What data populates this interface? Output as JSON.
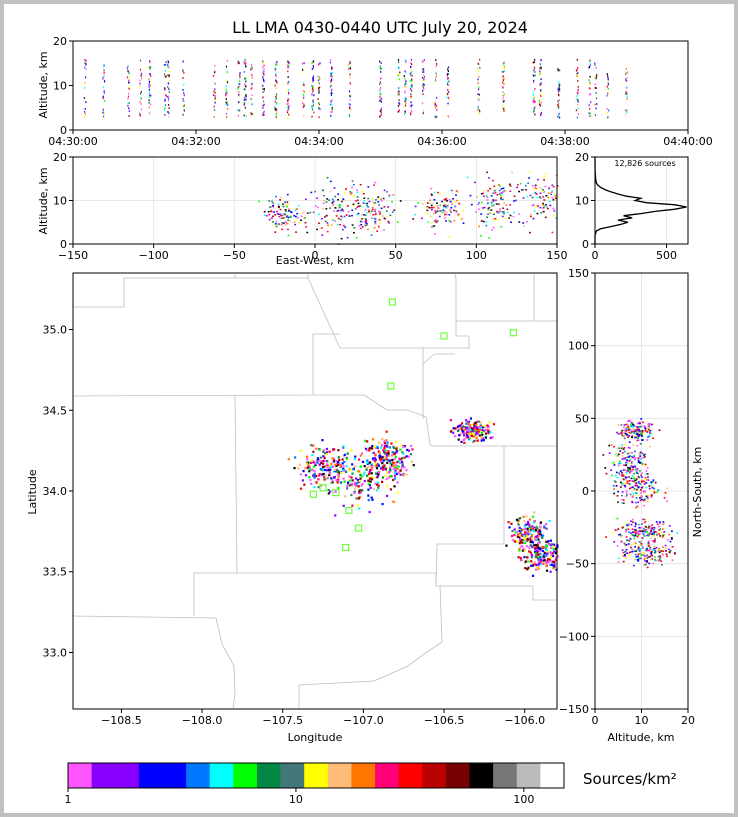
{
  "title": "LL LMA 0430-0440 UTC July 20, 2024",
  "colorbar": {
    "label": "Sources/km²",
    "tick_labels": [
      "1",
      "10",
      "100"
    ],
    "tick_values": [
      1,
      10,
      100
    ],
    "range": [
      1,
      150
    ],
    "colors": [
      "#ff55ff",
      "#8800ff",
      "#8800ff",
      "#0000ff",
      "#0000ff",
      "#0077ff",
      "#00ffff",
      "#00ff00",
      "#008844",
      "#447777",
      "#ffff00",
      "#ffbb77",
      "#ff7700",
      "#ff0077",
      "#ff0000",
      "#bb0000",
      "#770000",
      "#000000",
      "#777777",
      "#bbbbbb",
      "#ffffff"
    ]
  },
  "chart_data": [
    {
      "id": "time_height",
      "type": "scatter",
      "xlabel": "",
      "ylabel": "Altitude, km",
      "xlim": [
        "04:30:00",
        "04:40:00"
      ],
      "ylim": [
        0,
        20
      ],
      "x_tick_labels": [
        "04:30:00",
        "04:32:00",
        "04:34:00",
        "04:36:00",
        "04:38:00",
        "04:40:00"
      ],
      "y_tick_labels": [
        "0",
        "10",
        "20"
      ],
      "flash_times_min": [
        0.2,
        0.5,
        0.9,
        1.1,
        1.25,
        1.5,
        1.55,
        1.8,
        2.3,
        2.5,
        2.7,
        2.8,
        2.9,
        3.1,
        3.3,
        3.5,
        3.75,
        3.9,
        4.0,
        4.2,
        4.5,
        5.0,
        5.3,
        5.4,
        5.5,
        5.7,
        5.9,
        6.1,
        6.6,
        7.0,
        7.5,
        7.6,
        7.9,
        8.2,
        8.4,
        8.5,
        8.7,
        9.0
      ],
      "typical_altitude_km": [
        2,
        18
      ]
    },
    {
      "id": "east_west_height",
      "type": "scatter",
      "xlabel": "East-West, km",
      "ylabel": "Altitude, km",
      "xlim": [
        -150,
        150
      ],
      "ylim": [
        0,
        20
      ],
      "x_tick_labels": [
        "−150",
        "−100",
        "−50",
        "0",
        "50",
        "100",
        "150"
      ],
      "y_tick_labels": [
        "0",
        "10",
        "20"
      ],
      "clusters": [
        {
          "x": -20,
          "z": 7,
          "sx": 6,
          "sz": 2
        },
        {
          "x": 15,
          "z": 8,
          "sx": 10,
          "sz": 3
        },
        {
          "x": 35,
          "z": 8,
          "sx": 8,
          "sz": 2.5
        },
        {
          "x": 78,
          "z": 8,
          "sx": 7,
          "sz": 2
        },
        {
          "x": 110,
          "z": 9,
          "sx": 6,
          "sz": 3
        },
        {
          "x": 140,
          "z": 11,
          "sx": 8,
          "sz": 3
        }
      ]
    },
    {
      "id": "altitude_histogram",
      "type": "line",
      "annotation": "12,826 sources",
      "xlabel": "",
      "ylabel": "",
      "xlim": [
        0,
        650
      ],
      "ylim": [
        0,
        20
      ],
      "x_tick_labels": [
        "0",
        "500"
      ],
      "y_tick_labels": [
        "0",
        "10",
        "20"
      ],
      "altitude_km": [
        0,
        2,
        3,
        3.5,
        4,
        4.5,
        5,
        5.5,
        6,
        6.5,
        7,
        7.5,
        8,
        8.5,
        9,
        9.5,
        10,
        10.5,
        11,
        11.5,
        12,
        12.5,
        13,
        13.5,
        14,
        15,
        17,
        20
      ],
      "count": [
        0,
        0,
        10,
        40,
        110,
        180,
        230,
        160,
        260,
        200,
        320,
        420,
        560,
        640,
        560,
        360,
        280,
        320,
        220,
        160,
        110,
        70,
        40,
        20,
        10,
        4,
        1,
        0
      ]
    },
    {
      "id": "plan_view",
      "type": "heatmap",
      "xlabel": "Longitude",
      "ylabel": "Latitude",
      "xlim": [
        -108.8,
        -105.8
      ],
      "ylim": [
        32.65,
        35.35
      ],
      "x_tick_labels": [
        "−108.5",
        "−108.0",
        "−107.5",
        "−107.0",
        "−106.5",
        "−106.0"
      ],
      "x_tick_values": [
        -108.5,
        -108.0,
        -107.5,
        -107.0,
        -106.5,
        -106.0
      ],
      "y_tick_labels": [
        "33.0",
        "33.5",
        "34.0",
        "34.5",
        "35.0"
      ],
      "y_tick_values": [
        33.0,
        33.5,
        34.0,
        34.5,
        35.0
      ],
      "stations": [
        {
          "lon": -106.82,
          "lat": 35.17
        },
        {
          "lon": -106.5,
          "lat": 34.96
        },
        {
          "lon": -106.07,
          "lat": 34.98
        },
        {
          "lon": -106.83,
          "lat": 34.65
        },
        {
          "lon": -107.31,
          "lat": 33.98
        },
        {
          "lon": -107.25,
          "lat": 34.02
        },
        {
          "lon": -107.17,
          "lat": 33.99
        },
        {
          "lon": -107.09,
          "lat": 33.88
        },
        {
          "lon": -107.03,
          "lat": 33.77
        },
        {
          "lon": -107.11,
          "lat": 33.65
        }
      ],
      "clusters": [
        {
          "lon": -107.25,
          "lat": 34.15,
          "slon": 0.08,
          "slat": 0.06
        },
        {
          "lon": -107.02,
          "lat": 34.1,
          "slon": 0.1,
          "slat": 0.1
        },
        {
          "lon": -106.85,
          "lat": 34.2,
          "slon": 0.06,
          "slat": 0.06
        },
        {
          "lon": -106.33,
          "lat": 34.38,
          "slon": 0.05,
          "slat": 0.03
        },
        {
          "lon": -105.98,
          "lat": 33.74,
          "slon": 0.06,
          "slat": 0.05
        },
        {
          "lon": -105.88,
          "lat": 33.6,
          "slon": 0.07,
          "slat": 0.05
        }
      ]
    },
    {
      "id": "north_south_height",
      "type": "scatter",
      "xlabel": "Altitude, km",
      "ylabel": "North-South, km",
      "xlim": [
        0,
        20
      ],
      "ylim": [
        -150,
        150
      ],
      "x_tick_labels": [
        "0",
        "10",
        "20"
      ],
      "y_tick_labels": [
        "−150",
        "−100",
        "−50",
        "0",
        "50",
        "100",
        "150"
      ],
      "clusters": [
        {
          "z": 9,
          "y": 42,
          "sz": 2,
          "sy": 3
        },
        {
          "z": 7,
          "y": 20,
          "sz": 2,
          "sy": 7
        },
        {
          "z": 9,
          "y": 2,
          "sz": 2.5,
          "sy": 6
        },
        {
          "z": 10,
          "y": -27,
          "sz": 3,
          "sy": 4
        },
        {
          "z": 11,
          "y": -42,
          "sz": 3,
          "sy": 4
        }
      ]
    }
  ]
}
